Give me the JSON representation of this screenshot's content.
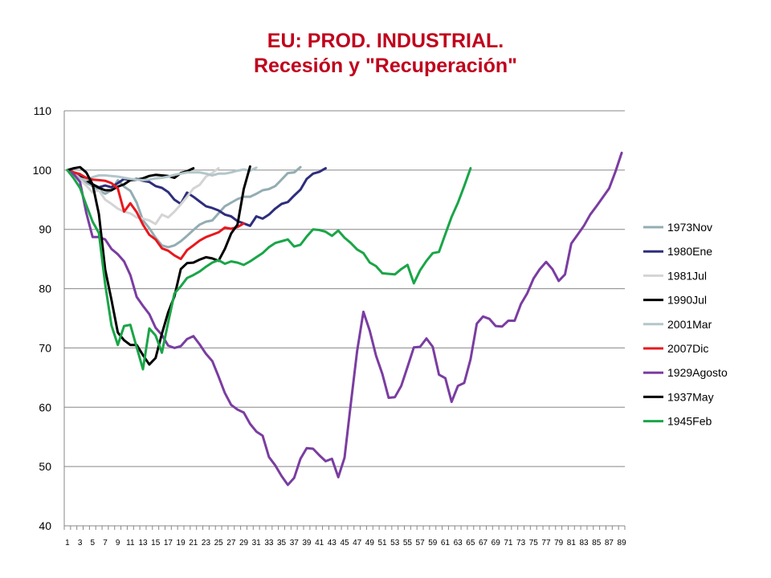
{
  "title": {
    "line1": "EU: PROD. INDUSTRIAL.",
    "line2": "Recesión y \"Recuperación\""
  },
  "chart_data": {
    "type": "line",
    "title": "EU: PROD. INDUSTRIAL. Recesión y \"Recuperación\"",
    "xlabel": "",
    "ylabel": "",
    "xlim": [
      1,
      89
    ],
    "ylim": [
      40,
      110
    ],
    "ystep": 10,
    "xtick_labels": [
      "1",
      "3",
      "5",
      "7",
      "9",
      "11",
      "13",
      "15",
      "17",
      "19",
      "21",
      "23",
      "25",
      "27",
      "29",
      "31",
      "33",
      "35",
      "37",
      "39",
      "41",
      "43",
      "45",
      "47",
      "49",
      "51",
      "53",
      "55",
      "57",
      "59",
      "61",
      "63",
      "65",
      "67",
      "69",
      "71",
      "73",
      "75",
      "77",
      "79",
      "81",
      "83",
      "85",
      "87",
      "89"
    ],
    "grid": "horizontal",
    "legend_position": "right",
    "series": [
      {
        "name": "1973Nov",
        "color": "#93ADB3",
        "values": [
          100,
          99.2,
          98.5,
          97.9,
          97.3,
          96.6,
          96.0,
          96.6,
          98.3,
          97.2,
          96.5,
          94.5,
          91.5,
          90.2,
          88.6,
          87.3,
          87.0,
          87.3,
          88.0,
          88.9,
          89.9,
          90.8,
          91.3,
          91.5,
          92.7,
          93.9,
          94.5,
          95.1,
          95.5,
          95.5,
          96.0,
          96.6,
          96.8,
          97.3,
          98.4,
          99.5,
          99.6,
          100.5
        ]
      },
      {
        "name": "1980Ene",
        "color": "#2E2D7C",
        "values": [
          100,
          99.6,
          98.9,
          98.3,
          97.6,
          97.1,
          97.4,
          97.1,
          97.8,
          98.5,
          98.3,
          98.5,
          98.2,
          98.0,
          97.3,
          97.0,
          96.3,
          95.0,
          94.3,
          96.2,
          95.5,
          94.7,
          93.9,
          93.6,
          93.2,
          92.5,
          92.2,
          91.4,
          91.0,
          90.6,
          92.2,
          91.8,
          92.5,
          93.5,
          94.3,
          94.6,
          95.7,
          96.7,
          98.5,
          99.4,
          99.7,
          100.3
        ]
      },
      {
        "name": "1981Jul",
        "color": "#D4D4D4",
        "values": [
          100,
          99.6,
          98.4,
          97.4,
          96.2,
          96.6,
          95.0,
          94.3,
          93.5,
          93.0,
          92.7,
          92.0,
          91.8,
          91.5,
          90.9,
          92.5,
          92.0,
          93.0,
          94.2,
          95.5,
          96.9,
          97.5,
          98.9,
          99.5,
          100.3
        ]
      },
      {
        "name": "1990Jul",
        "color": "#000000",
        "values": [
          100,
          99.6,
          99.3,
          98.3,
          97.6,
          97.0,
          96.6,
          96.6,
          97.2,
          97.6,
          98.3,
          98.4,
          98.6,
          99.0,
          99.2,
          99.1,
          99.0,
          98.7,
          99.5,
          99.8,
          100.3
        ]
      },
      {
        "name": "2001Mar",
        "color": "#B2C6CA",
        "values": [
          100,
          99.5,
          98.6,
          98.3,
          98.8,
          99.1,
          99.1,
          99.0,
          98.9,
          98.7,
          98.5,
          98.4,
          98.3,
          98.4,
          98.6,
          98.7,
          98.9,
          99.2,
          99.4,
          99.6,
          99.6,
          99.6,
          99.4,
          99.1,
          99.4,
          99.4,
          99.6,
          99.9,
          100.1,
          99.9,
          100.4
        ]
      },
      {
        "name": "2007Dic",
        "color": "#E8181E",
        "values": [
          100,
          99.6,
          99.3,
          98.7,
          98.4,
          98.3,
          98.2,
          97.8,
          96.9,
          93.0,
          94.4,
          92.9,
          90.8,
          89.1,
          88.3,
          86.8,
          86.4,
          85.6,
          85.0,
          86.5,
          87.3,
          88.1,
          88.7,
          89.1,
          89.5,
          90.3,
          90.1,
          90.4,
          91.0
        ]
      },
      {
        "name": "1929Agosto",
        "color": "#7A3DA1",
        "values": [
          100,
          99.3,
          98.0,
          92.8,
          88.7,
          88.7,
          88.3,
          86.7,
          85.8,
          84.6,
          82.3,
          78.6,
          77.1,
          75.7,
          73.4,
          72.2,
          70.4,
          70.0,
          70.3,
          71.5,
          72.0,
          70.6,
          69.0,
          67.8,
          65.2,
          62.4,
          60.4,
          59.6,
          59.1,
          57.2,
          55.9,
          55.2,
          51.6,
          50.2,
          48.4,
          46.9,
          48.1,
          51.3,
          53.1,
          53.0,
          51.9,
          50.9,
          51.3,
          48.2,
          51.5,
          60.6,
          69.5,
          76.1,
          72.9,
          68.7,
          65.6,
          61.6,
          61.7,
          63.6,
          66.8,
          70.1,
          70.2,
          71.6,
          70.2,
          65.5,
          64.9,
          60.9,
          63.6,
          64.1,
          68.1,
          74.1,
          75.3,
          74.9,
          73.7,
          73.6,
          74.6,
          74.6,
          77.4,
          79.2,
          81.7,
          83.3,
          84.5,
          83.3,
          81.3,
          82.4,
          87.6,
          89.1,
          90.6,
          92.5,
          93.9,
          95.4,
          96.9,
          99.7,
          102.9
        ]
      },
      {
        "name": "1937May",
        "color": "#000000",
        "values": [
          100,
          100.3,
          100.5,
          99.6,
          97.6,
          92.6,
          83.2,
          78.1,
          72.6,
          71.3,
          70.5,
          70.5,
          68.8,
          67.2,
          68.3,
          72.4,
          76.0,
          78.7,
          83.3,
          84.3,
          84.4,
          84.9,
          85.3,
          85.1,
          84.7,
          86.7,
          89.3,
          90.8,
          96.8,
          100.6
        ]
      },
      {
        "name": "1945Feb",
        "color": "#1AA548",
        "values": [
          100,
          98.6,
          97.0,
          94.1,
          91.3,
          89.4,
          80.7,
          73.8,
          70.5,
          73.7,
          73.9,
          70.1,
          66.4,
          73.3,
          72.1,
          69.2,
          74.3,
          79.2,
          80.4,
          81.8,
          82.3,
          82.9,
          83.7,
          84.4,
          84.8,
          84.2,
          84.6,
          84.4,
          84.0,
          84.6,
          85.3,
          86.0,
          87.0,
          87.7,
          88.0,
          88.3,
          87.1,
          87.4,
          88.8,
          90.0,
          89.9,
          89.6,
          88.9,
          89.8,
          88.6,
          87.7,
          86.6,
          86.0,
          84.4,
          83.8,
          82.6,
          82.5,
          82.4,
          83.3,
          84.0,
          80.9,
          83.1,
          84.7,
          86.0,
          86.2,
          89.2,
          92.1,
          94.5,
          97.3,
          100.3
        ]
      }
    ]
  }
}
